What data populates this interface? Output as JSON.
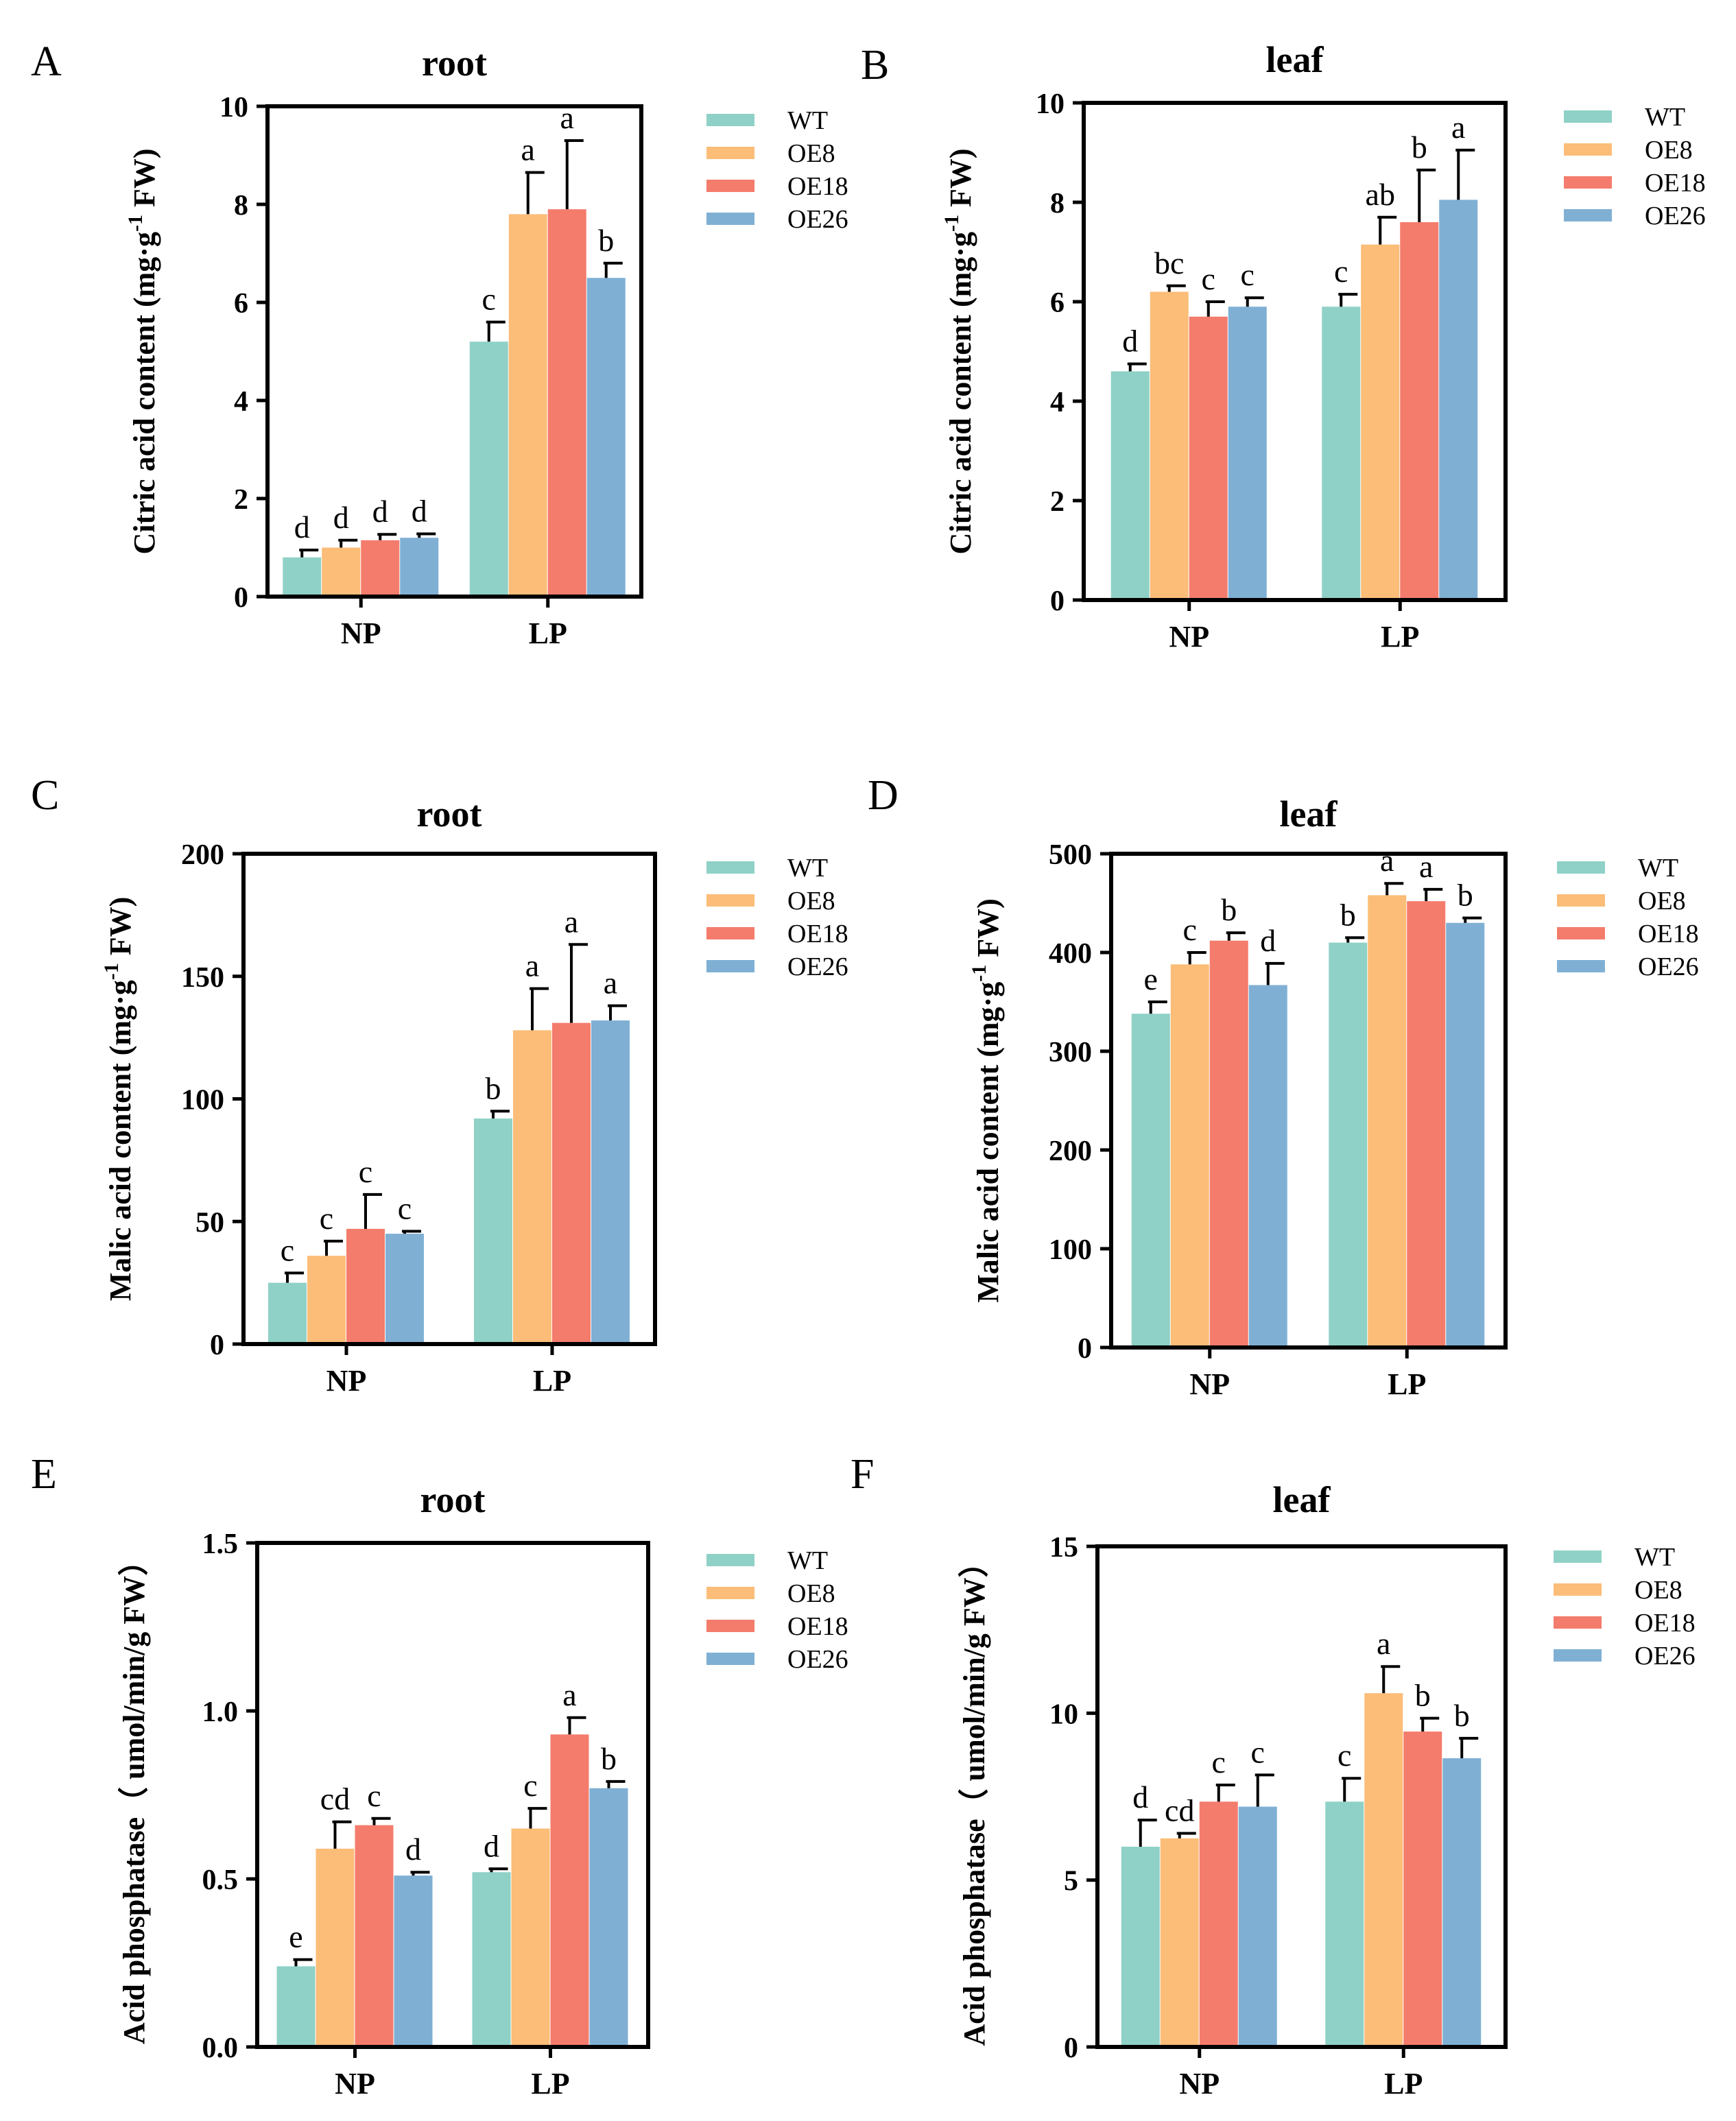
{
  "colors": {
    "WT": "#8fd1c6",
    "OE8": "#fbbd78",
    "OE18": "#f47c6c",
    "OE26": "#7fb0d4"
  },
  "chart_data": [
    {
      "panel": "A",
      "type": "bar",
      "title": "root",
      "xlabel": "",
      "ylabel": "Citric acid content (mg·g-1 FW)",
      "ylim": [
        0,
        10
      ],
      "ticks": [
        "0",
        "2",
        "4",
        "6",
        "8",
        "10"
      ],
      "categories": [
        "NP",
        "LP"
      ],
      "series": [
        {
          "name": "WT",
          "values": [
            0.8,
            5.2
          ],
          "errors": [
            0.15,
            0.4
          ],
          "letters": [
            "d",
            "c"
          ]
        },
        {
          "name": "OE8",
          "values": [
            1.0,
            7.8
          ],
          "errors": [
            0.15,
            0.85
          ],
          "letters": [
            "d",
            "a"
          ]
        },
        {
          "name": "OE18",
          "values": [
            1.15,
            7.9
          ],
          "errors": [
            0.12,
            1.4
          ],
          "letters": [
            "d",
            "a"
          ]
        },
        {
          "name": "OE26",
          "values": [
            1.2,
            6.5
          ],
          "errors": [
            0.08,
            0.3
          ],
          "letters": [
            "d",
            "b"
          ]
        }
      ]
    },
    {
      "panel": "B",
      "type": "bar",
      "title": "leaf",
      "xlabel": "",
      "ylabel": "Citric acid content (mg·g-1 FW)",
      "ylim": [
        0,
        10
      ],
      "ticks": [
        "0",
        "2",
        "4",
        "6",
        "8",
        "10"
      ],
      "categories": [
        "NP",
        "LP"
      ],
      "series": [
        {
          "name": "WT",
          "values": [
            4.6,
            5.9
          ],
          "errors": [
            0.15,
            0.25
          ],
          "letters": [
            "d",
            "c"
          ]
        },
        {
          "name": "OE8",
          "values": [
            6.2,
            7.15
          ],
          "errors": [
            0.12,
            0.55
          ],
          "letters": [
            "bc",
            "ab"
          ]
        },
        {
          "name": "OE18",
          "values": [
            5.7,
            7.6
          ],
          "errors": [
            0.3,
            1.05
          ],
          "letters": [
            "c",
            "b"
          ]
        },
        {
          "name": "OE26",
          "values": [
            5.9,
            8.05
          ],
          "errors": [
            0.18,
            1.0
          ],
          "letters": [
            "c",
            "a"
          ]
        }
      ]
    },
    {
      "panel": "C",
      "type": "bar",
      "title": "root",
      "xlabel": "",
      "ylabel": "Malic acid  content (mg·g-1 FW)",
      "ylim": [
        0,
        200
      ],
      "ticks": [
        "0",
        "50",
        "100",
        "150",
        "200"
      ],
      "categories": [
        "NP",
        "LP"
      ],
      "series": [
        {
          "name": "WT",
          "values": [
            25,
            92
          ],
          "errors": [
            4,
            3
          ],
          "letters": [
            "c",
            "b"
          ]
        },
        {
          "name": "OE8",
          "values": [
            36,
            128
          ],
          "errors": [
            6,
            17
          ],
          "letters": [
            "c",
            "a"
          ]
        },
        {
          "name": "OE18",
          "values": [
            47,
            131
          ],
          "errors": [
            14,
            32
          ],
          "letters": [
            "c",
            "a"
          ]
        },
        {
          "name": "OE26",
          "values": [
            45,
            132
          ],
          "errors": [
            1,
            6
          ],
          "letters": [
            "c",
            "a"
          ]
        }
      ]
    },
    {
      "panel": "D",
      "type": "bar",
      "title": "leaf",
      "xlabel": "",
      "ylabel": "Malic acid  content (mg·g-1 FW)",
      "ylim": [
        0,
        500
      ],
      "ticks": [
        "0",
        "100",
        "200",
        "300",
        "400",
        "500"
      ],
      "categories": [
        "NP",
        "LP"
      ],
      "series": [
        {
          "name": "WT",
          "values": [
            338,
            410
          ],
          "errors": [
            12,
            5
          ],
          "letters": [
            "e",
            "b"
          ]
        },
        {
          "name": "OE8",
          "values": [
            388,
            458
          ],
          "errors": [
            12,
            12
          ],
          "letters": [
            "c",
            "a"
          ]
        },
        {
          "name": "OE18",
          "values": [
            412,
            452
          ],
          "errors": [
            8,
            12
          ],
          "letters": [
            "b",
            "a"
          ]
        },
        {
          "name": "OE26",
          "values": [
            367,
            430
          ],
          "errors": [
            22,
            5
          ],
          "letters": [
            "d",
            "b"
          ]
        }
      ]
    },
    {
      "panel": "E",
      "type": "bar",
      "title": "root",
      "xlabel": "",
      "ylabel": "Acid phosphatase（ umol/min/g FW）",
      "ylim": [
        0,
        1.5
      ],
      "ticks": [
        "0.0",
        "0.5",
        "1.0",
        "1.5"
      ],
      "categories": [
        "NP",
        "LP"
      ],
      "series": [
        {
          "name": "WT",
          "values": [
            0.24,
            0.52
          ],
          "errors": [
            0.02,
            0.01
          ],
          "letters": [
            "e",
            "d"
          ]
        },
        {
          "name": "OE8",
          "values": [
            0.59,
            0.65
          ],
          "errors": [
            0.08,
            0.06
          ],
          "letters": [
            "cd",
            "c"
          ]
        },
        {
          "name": "OE18",
          "values": [
            0.66,
            0.93
          ],
          "errors": [
            0.02,
            0.05
          ],
          "letters": [
            "c",
            "a"
          ]
        },
        {
          "name": "OE26",
          "values": [
            0.51,
            0.77
          ],
          "errors": [
            0.01,
            0.02
          ],
          "letters": [
            "d",
            "b"
          ]
        }
      ]
    },
    {
      "panel": "F",
      "type": "bar",
      "title": "leaf",
      "xlabel": "",
      "ylabel": "Acid phosphatase（ umol/min/g FW）",
      "ylim": [
        0,
        15
      ],
      "ticks": [
        "0",
        "5",
        "10",
        "15"
      ],
      "categories": [
        "NP",
        "LP"
      ],
      "series": [
        {
          "name": "WT",
          "values": [
            6.0,
            7.35
          ],
          "errors": [
            0.8,
            0.7
          ],
          "letters": [
            "d",
            "c"
          ]
        },
        {
          "name": "OE8",
          "values": [
            6.25,
            10.6
          ],
          "errors": [
            0.15,
            0.8
          ],
          "letters": [
            "cd",
            "a"
          ]
        },
        {
          "name": "OE18",
          "values": [
            7.35,
            9.45
          ],
          "errors": [
            0.5,
            0.4
          ],
          "letters": [
            "c",
            "b"
          ]
        },
        {
          "name": "OE26",
          "values": [
            7.2,
            8.65
          ],
          "errors": [
            0.95,
            0.6
          ],
          "letters": [
            "c",
            "b"
          ]
        }
      ]
    }
  ]
}
